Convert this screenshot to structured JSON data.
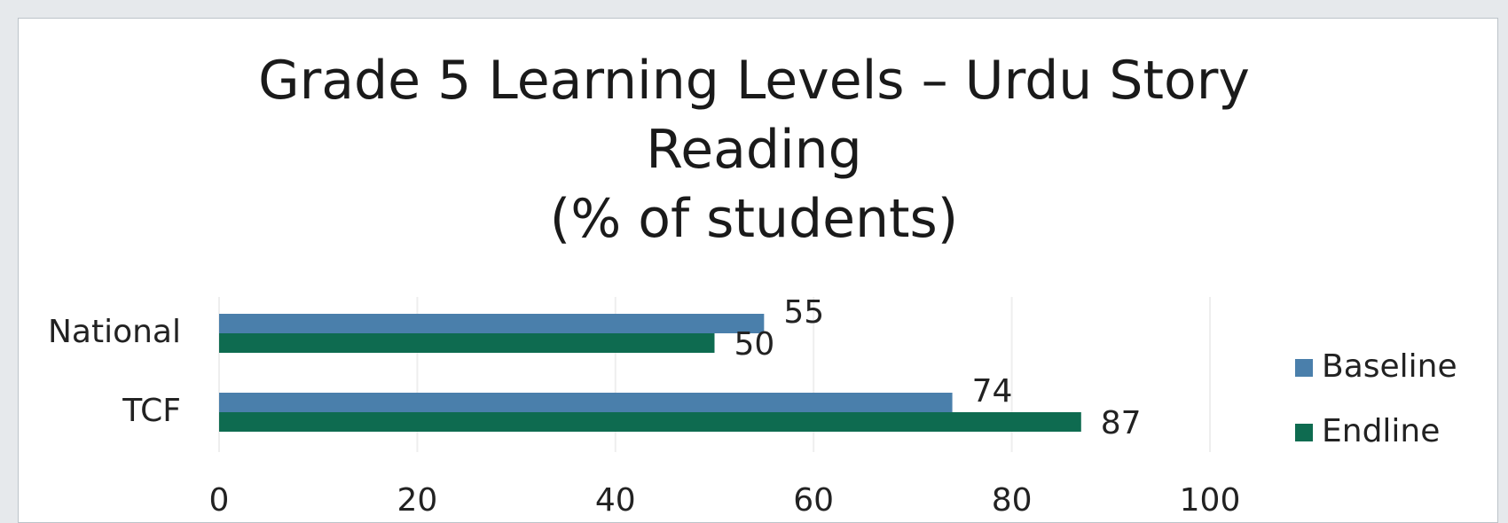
{
  "chart_data": {
    "type": "bar",
    "orientation": "horizontal",
    "title": "Grade 5 Learning Levels – Urdu Story Reading",
    "subtitle": "(% of students)",
    "categories": [
      "National",
      "TCF"
    ],
    "series": [
      {
        "name": "Baseline",
        "color": "#4a7fab",
        "values": [
          55,
          74
        ]
      },
      {
        "name": "Endline",
        "color": "#0e6b50",
        "values": [
          50,
          87
        ]
      }
    ],
    "xlim": [
      0,
      100
    ],
    "xticks": [
      0,
      20,
      40,
      60,
      80,
      100
    ],
    "grid": true,
    "legend": "right"
  }
}
